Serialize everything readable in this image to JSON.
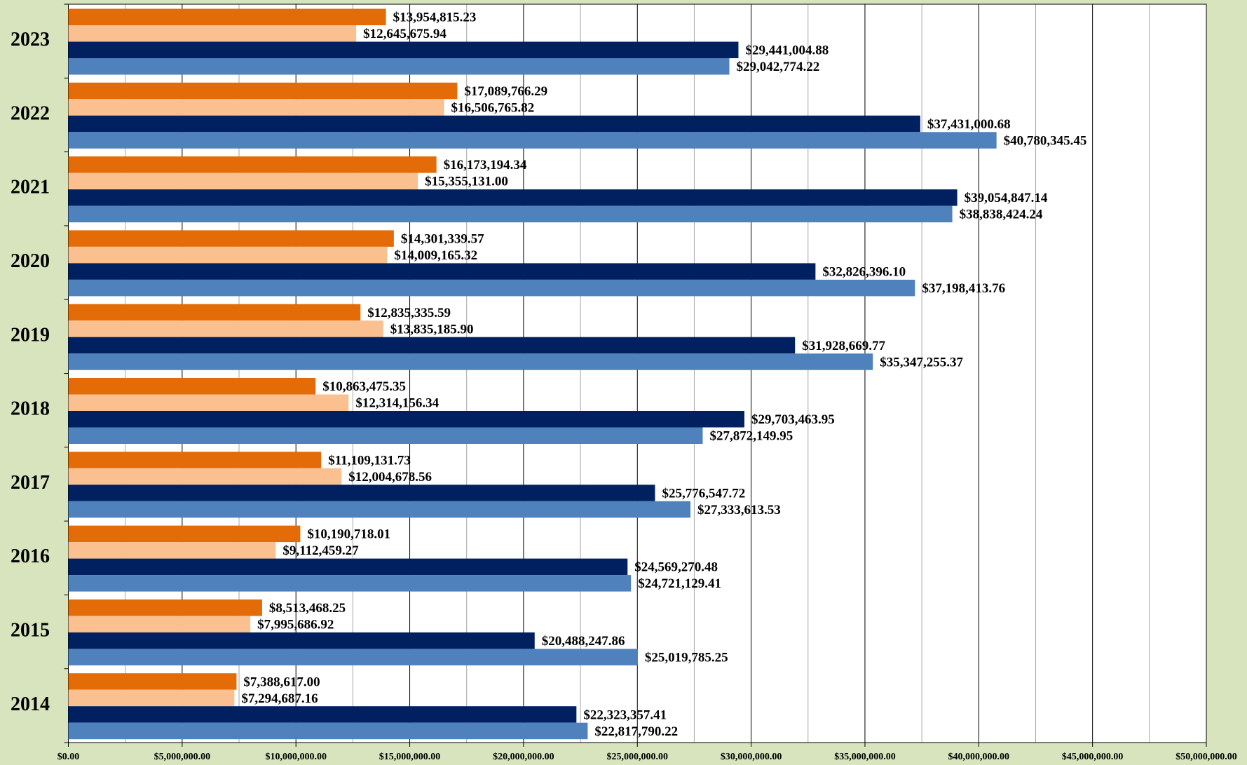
{
  "chart_data": {
    "type": "hbar",
    "categories": [
      "2023",
      "2022",
      "2021",
      "2020",
      "2019",
      "2018",
      "2017",
      "2016",
      "2015",
      "2014"
    ],
    "series": [
      {
        "color": "#e36c09",
        "values": [
          13954815.23,
          17089766.29,
          16173194.34,
          14301339.57,
          12835335.59,
          10863475.35,
          11109131.73,
          10190718.01,
          8513468.25,
          7388617
        ],
        "value_labels": [
          "$13,954,815.23",
          "$17,089,766.29",
          "$16,173,194.34",
          "$14,301,339.57",
          "$12,835,335.59",
          "$10,863,475.35",
          "$11,109,131.73",
          "$10,190,718.01",
          "$8,513,468.25",
          "$7,388,617.00"
        ]
      },
      {
        "color": "#fac090",
        "values": [
          12645675.94,
          16506765.82,
          15355131,
          14009165.32,
          13835185.9,
          12314156.34,
          12004678.56,
          9112459.27,
          7995686.92,
          7294687.16
        ],
        "value_labels": [
          "$12,645,675.94",
          "$16,506,765.82",
          "$15,355,131.00",
          "$14,009,165.32",
          "$13,835,185.90",
          "$12,314,156.34",
          "$12,004,678.56",
          "$9,112,459.27",
          "$7,995,686.92",
          "$7,294,687.16"
        ]
      },
      {
        "color": "#002060",
        "values": [
          29441004.88,
          37431000.68,
          39054847.14,
          32826396.1,
          31928669.77,
          29703463.95,
          25776547.72,
          24569270.48,
          20488247.86,
          22323357.41
        ],
        "value_labels": [
          "$29,441,004.88",
          "$37,431,000.68",
          "$39,054,847.14",
          "$32,826,396.10",
          "$31,928,669.77",
          "$29,703,463.95",
          "$25,776,547.72",
          "$24,569,270.48",
          "$20,488,247.86",
          "$22,323,357.41"
        ]
      },
      {
        "color": "#4f81bd",
        "values": [
          29042774.22,
          40780345.45,
          38838424.24,
          37198413.76,
          35347255.37,
          27872149.95,
          27333613.53,
          24721129.41,
          25019785.25,
          22817790.22
        ],
        "value_labels": [
          "$29,042,774.22",
          "$40,780,345.45",
          "$38,838,424.24",
          "$37,198,413.76",
          "$35,347,255.37",
          "$27,872,149.95",
          "$27,333,613.53",
          "$24,721,129.41",
          "$25,019,785.25",
          "$22,817,790.22"
        ]
      }
    ],
    "xlim": [
      0,
      50000000
    ],
    "xticks": [
      {
        "value": 0,
        "label": "$0.00"
      },
      {
        "value": 5000000,
        "label": "$5,000,000.00"
      },
      {
        "value": 10000000,
        "label": "$10,000,000.00"
      },
      {
        "value": 15000000,
        "label": "$15,000,000.00"
      },
      {
        "value": 20000000,
        "label": "$20,000,000.00"
      },
      {
        "value": 25000000,
        "label": "$25,000,000.00"
      },
      {
        "value": 30000000,
        "label": "$30,000,000.00"
      },
      {
        "value": 35000000,
        "label": "$35,000,000.00"
      },
      {
        "value": 40000000,
        "label": "$40,000,000.00"
      },
      {
        "value": 45000000,
        "label": "$45,000,000.00"
      },
      {
        "value": 50000000,
        "label": "$50,000,000.00"
      }
    ],
    "grid": true
  }
}
